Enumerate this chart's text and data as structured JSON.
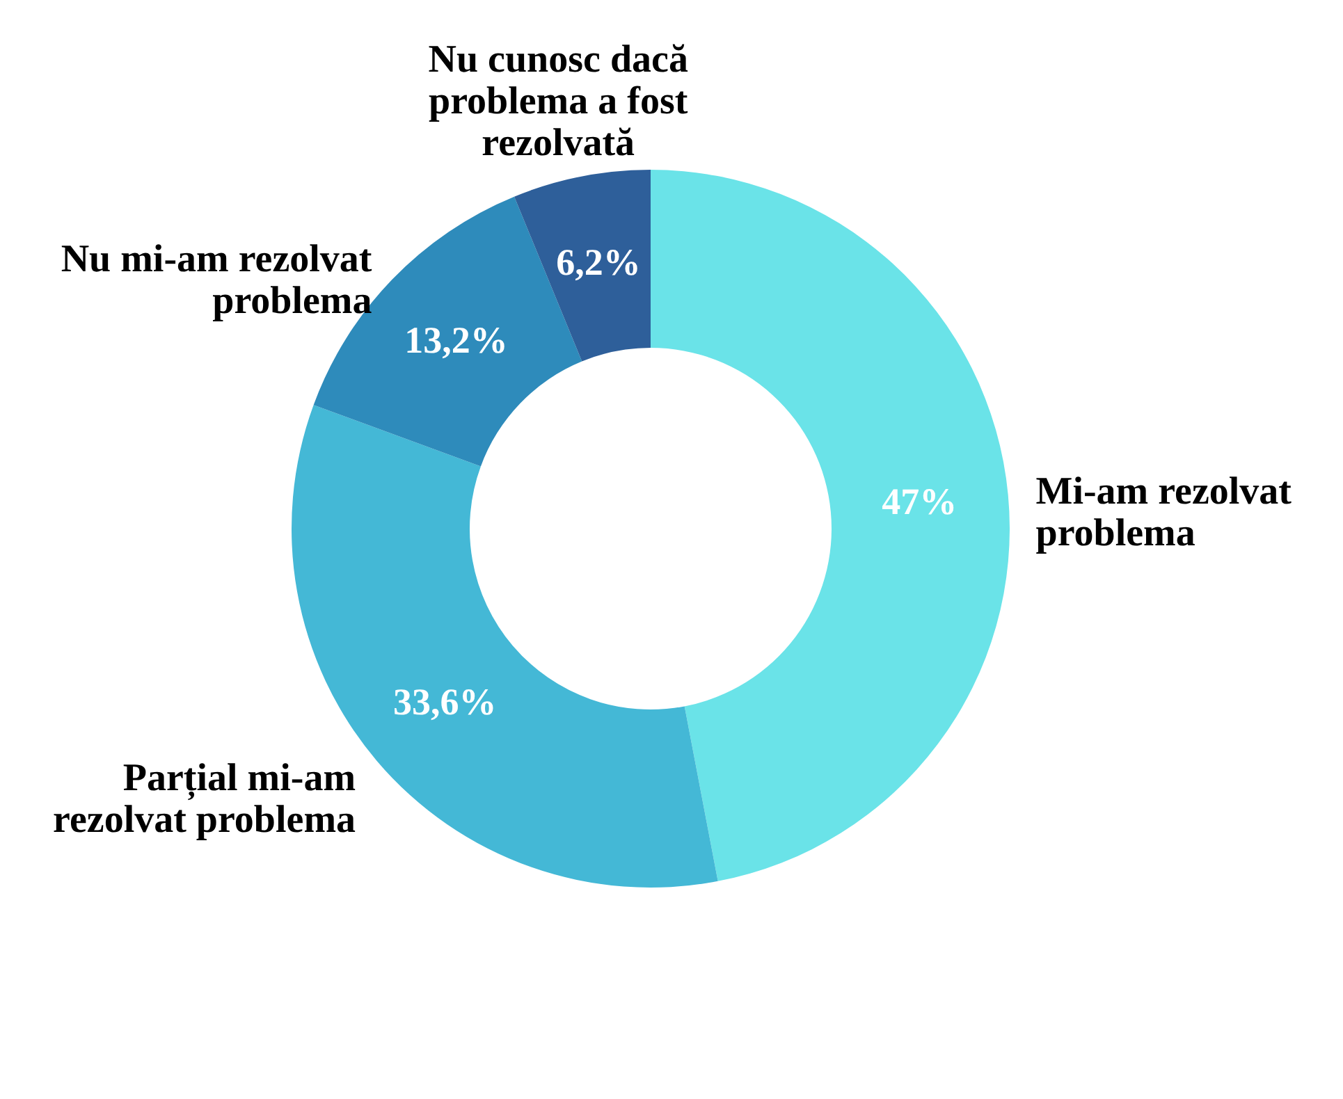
{
  "chart_data": {
    "type": "donut",
    "categories": [
      "Mi-am rezolvat problema",
      "Parțial mi-am rezolvat problema",
      "Nu mi-am rezolvat problema",
      "Nu cunosc dacă problema a fost rezolvată"
    ],
    "values": [
      47,
      33.6,
      13.2,
      6.2
    ],
    "value_labels": [
      "47%",
      "33,6%",
      "13,2%",
      "6,2%"
    ],
    "colors": [
      "#6ae3e8",
      "#44b8d6",
      "#2e8bbb",
      "#2e5f9a"
    ],
    "legend": false
  }
}
